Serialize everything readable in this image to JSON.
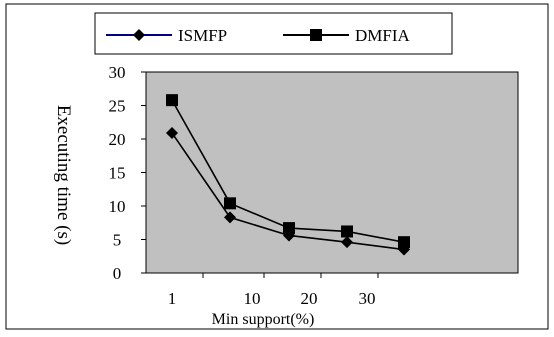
{
  "chart_data": {
    "type": "line",
    "categories": [
      "1",
      "10",
      "20",
      "30",
      ""
    ],
    "xlabel": "Min support(%)",
    "ylabel": "Executing time (s)",
    "ylim": [
      0,
      30
    ],
    "yticks": [
      0,
      5,
      10,
      15,
      20,
      25,
      30
    ],
    "grid": false,
    "legend_position": "top",
    "plot_background": "#c0c0c0",
    "series": [
      {
        "name": "ISMFP",
        "marker": "diamond",
        "color": "#000000",
        "legend_line_color": "#000080",
        "values": [
          20.9,
          8.3,
          5.6,
          4.6,
          3.5
        ]
      },
      {
        "name": "DMFIA",
        "marker": "square",
        "color": "#000000",
        "legend_line_color": "#000000",
        "values": [
          25.8,
          10.4,
          6.7,
          6.2,
          4.6
        ]
      }
    ]
  }
}
